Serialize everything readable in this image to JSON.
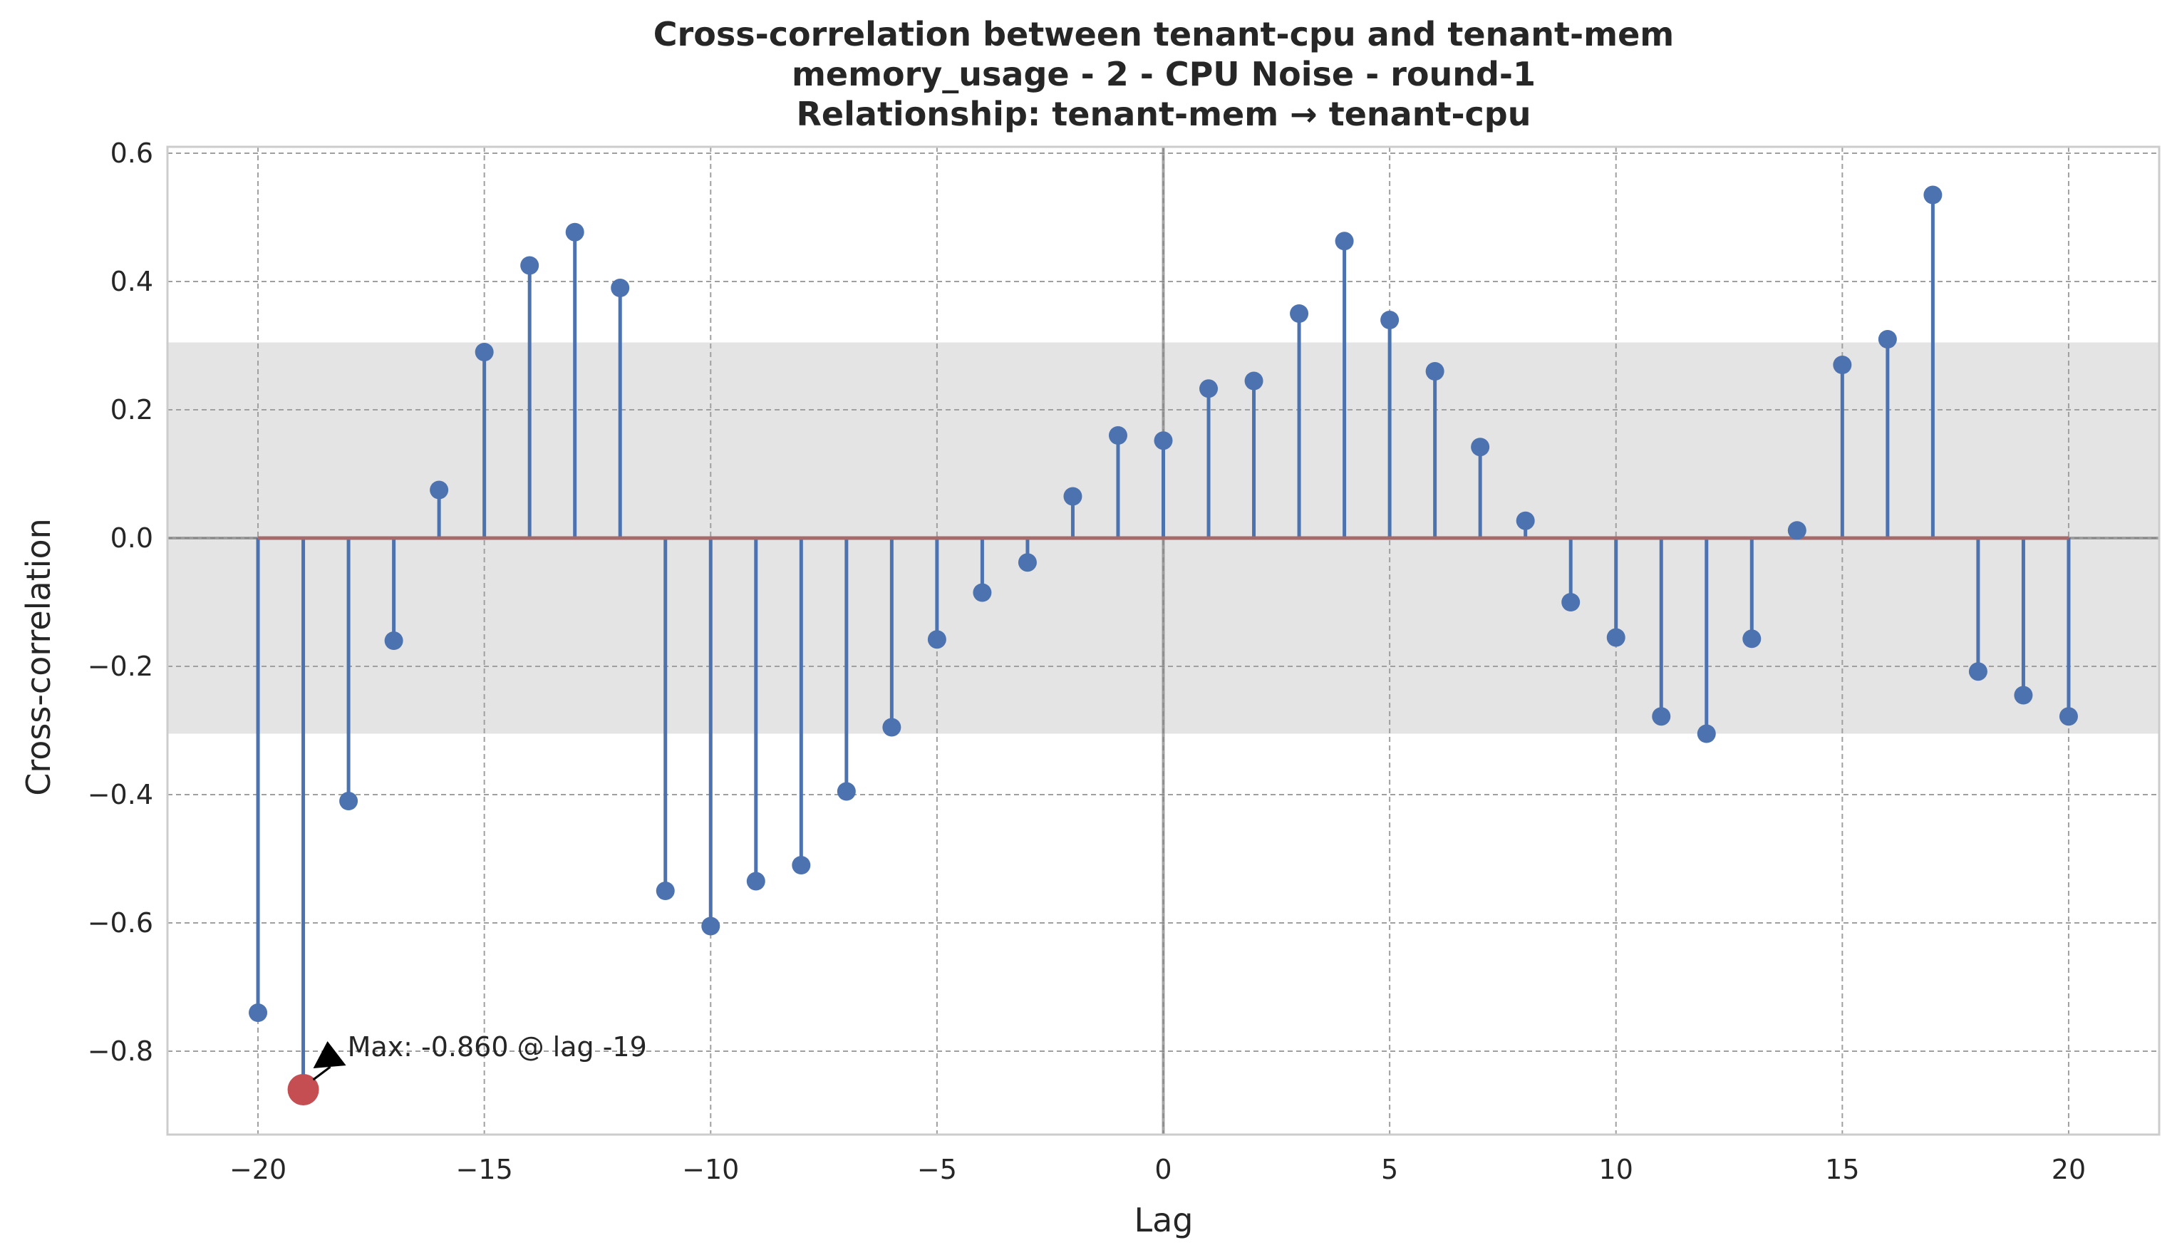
{
  "chart_data": {
    "type": "stem",
    "title_lines": [
      "Cross-correlation between tenant-cpu and tenant-mem",
      "memory_usage - 2 - CPU Noise - round-1",
      "Relationship: tenant-mem → tenant-cpu"
    ],
    "xlabel": "Lag",
    "ylabel": "Cross-correlation",
    "xlim": [
      -22,
      22
    ],
    "ylim": [
      -0.93,
      0.61
    ],
    "xticks": [
      -20,
      -15,
      -10,
      -5,
      0,
      5,
      10,
      15,
      20
    ],
    "xtick_labels": [
      "−20",
      "−15",
      "−10",
      "−5",
      "0",
      "5",
      "10",
      "15",
      "20"
    ],
    "yticks": [
      -0.8,
      -0.6,
      -0.4,
      -0.2,
      0.0,
      0.2,
      0.4,
      0.6
    ],
    "ytick_labels": [
      "−0.8",
      "−0.6",
      "−0.4",
      "−0.2",
      "0.0",
      "0.2",
      "0.4",
      "0.6"
    ],
    "grid": true,
    "confidence_band": [
      -0.305,
      0.305
    ],
    "lags": [
      -20,
      -19,
      -18,
      -17,
      -16,
      -15,
      -14,
      -13,
      -12,
      -11,
      -10,
      -9,
      -8,
      -7,
      -6,
      -5,
      -4,
      -3,
      -2,
      -1,
      0,
      1,
      2,
      3,
      4,
      5,
      6,
      7,
      8,
      9,
      10,
      11,
      12,
      13,
      14,
      15,
      16,
      17,
      18,
      19,
      20
    ],
    "values": [
      -0.74,
      -0.86,
      -0.41,
      -0.16,
      0.075,
      0.29,
      0.425,
      0.477,
      0.39,
      -0.55,
      -0.605,
      -0.535,
      -0.51,
      -0.395,
      -0.295,
      -0.158,
      -0.085,
      -0.038,
      0.065,
      0.16,
      0.152,
      0.233,
      0.245,
      0.35,
      0.463,
      0.34,
      0.26,
      0.142,
      0.027,
      -0.1,
      -0.155,
      -0.278,
      -0.305,
      -0.157,
      0.012,
      0.27,
      0.31,
      0.535,
      -0.208,
      -0.245,
      -0.278
    ],
    "highlight": {
      "lag": -19,
      "value": -0.86
    },
    "annotation": "Max: -0.860 @ lag -19",
    "colors": {
      "stem": "#4c72b0",
      "marker": "#4c72b0",
      "baseline": "#a56a6a",
      "highlight": "#c44e52",
      "band": "#e4e4e4",
      "grid": "#a0a0a0",
      "zero_line": "#808080",
      "frame": "#cccccc"
    }
  }
}
